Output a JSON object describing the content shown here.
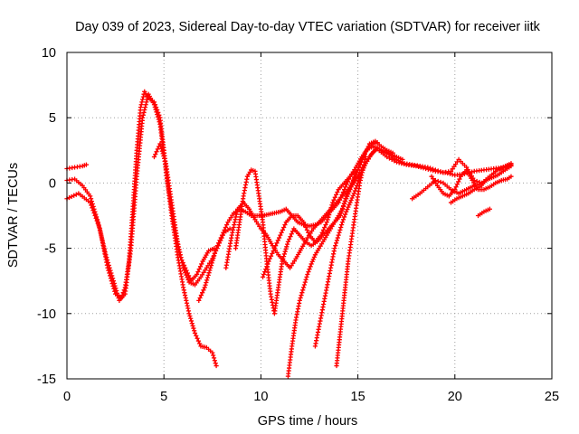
{
  "chart_data": {
    "type": "scatter",
    "title": "Day 039 of 2023, Sidereal Day-to-day VTEC variation (SDTVAR) for receiver iitk",
    "xlabel": "GPS time / hours",
    "ylabel": "SDTVAR / TECUs",
    "xlim": [
      0,
      25
    ],
    "ylim": [
      -15,
      10
    ],
    "xticks": [
      0,
      5,
      10,
      15,
      20,
      25
    ],
    "yticks": [
      -15,
      -10,
      -5,
      0,
      5,
      10
    ],
    "grid": true,
    "marker": "+",
    "color": "#ff0000",
    "series": [
      {
        "name": "trace-1",
        "x": [
          0,
          0.6,
          1.2,
          1.7,
          2.1,
          2.5,
          2.8,
          3.0,
          3.2,
          3.4,
          3.6,
          3.8,
          4.0,
          4.2,
          4.5,
          4.8,
          5.0,
          5.2,
          5.5,
          5.8,
          6.1,
          6.4,
          6.7,
          7.0,
          7.3,
          7.6
        ],
        "y": [
          -1.2,
          -0.8,
          -1.5,
          -3.5,
          -6.5,
          -8.5,
          -8.8,
          -8.0,
          -6.0,
          -2.0,
          2.5,
          5.8,
          7.0,
          6.5,
          6.2,
          5.0,
          2.5,
          0.0,
          -3.0,
          -5.5,
          -6.5,
          -7.5,
          -7.0,
          -6.0,
          -5.2,
          -5.0
        ]
      },
      {
        "name": "trace-2",
        "x": [
          0,
          0.4,
          0.8,
          1.2,
          1.6,
          2.0,
          2.4,
          2.7,
          3.0,
          3.3,
          3.6,
          3.9,
          4.2,
          4.5,
          4.8,
          5.1,
          5.4,
          5.7,
          6.0,
          6.3,
          6.6,
          6.9,
          7.2,
          7.5,
          7.7
        ],
        "y": [
          0.2,
          0.3,
          -0.2,
          -1.0,
          -3.0,
          -5.5,
          -7.5,
          -9.0,
          -8.5,
          -5.0,
          0.5,
          5.0,
          6.8,
          6.0,
          4.5,
          1.0,
          -2.5,
          -5.5,
          -8.0,
          -10.0,
          -11.5,
          -12.5,
          -12.6,
          -13.0,
          -14.0
        ]
      },
      {
        "name": "trace-3",
        "x": [
          0,
          0.4,
          0.8,
          1.0
        ],
        "y": [
          1.1,
          1.2,
          1.3,
          1.4
        ]
      },
      {
        "name": "trace-4",
        "x": [
          4.5,
          4.8,
          5.1,
          5.4,
          5.7,
          6.0,
          6.3,
          6.6,
          6.9,
          7.2,
          7.5,
          7.8,
          8.1,
          8.4
        ],
        "y": [
          2.0,
          3.0,
          1.5,
          -1.5,
          -4.5,
          -6.5,
          -7.6,
          -7.8,
          -7.2,
          -6.5,
          -5.8,
          -4.8,
          -3.8,
          -3.5
        ]
      },
      {
        "name": "trace-5",
        "x": [
          6.8,
          7.1,
          7.4,
          7.7,
          8.0,
          8.3,
          8.6,
          8.9,
          9.2,
          9.5,
          9.8,
          10.1,
          10.4,
          10.7,
          11.0,
          11.3,
          11.6,
          11.9,
          12.2,
          12.5,
          12.8,
          13.1,
          13.4,
          13.7,
          14.0,
          14.3,
          14.6,
          14.9,
          15.2,
          15.5,
          15.8,
          16.1,
          16.4,
          16.7,
          17.0,
          17.3
        ],
        "y": [
          -9.0,
          -8.0,
          -6.5,
          -5.0,
          -4.0,
          -3.0,
          -2.3,
          -2.0,
          -2.2,
          -2.5,
          -2.5,
          -2.5,
          -2.4,
          -2.3,
          -2.2,
          -2.0,
          -2.5,
          -3.0,
          -3.2,
          -3.3,
          -3.2,
          -3.0,
          -2.5,
          -2.0,
          -1.5,
          -0.5,
          0.5,
          1.2,
          2.0,
          2.6,
          2.8,
          2.6,
          2.4,
          2.2,
          2.0,
          1.8
        ]
      },
      {
        "name": "trace-6",
        "x": [
          8.7,
          8.9,
          9.1,
          9.3,
          9.5,
          9.7,
          9.9,
          10.1,
          10.3,
          10.5,
          10.7,
          10.9,
          11.1,
          11.4,
          11.7,
          12.0,
          12.3,
          12.6,
          12.9,
          13.2,
          13.5,
          13.8,
          14.1,
          14.4,
          14.7,
          15.0,
          15.3,
          15.6,
          15.9,
          16.2,
          16.5,
          16.8
        ],
        "y": [
          -5.0,
          -3.0,
          -1.0,
          0.5,
          1.0,
          0.9,
          -1.0,
          -3.0,
          -6.0,
          -8.5,
          -10.0,
          -8.0,
          -6.0,
          -4.5,
          -3.5,
          -4.0,
          -4.5,
          -4.8,
          -4.5,
          -4.0,
          -3.5,
          -3.0,
          -2.5,
          -1.0,
          0.0,
          1.0,
          2.0,
          3.0,
          3.2,
          2.8,
          2.5,
          2.3
        ]
      },
      {
        "name": "trace-7",
        "x": [
          8.2,
          8.5,
          8.8,
          9.1,
          9.4,
          9.7,
          10.0,
          10.3,
          10.6,
          10.9,
          11.2,
          11.5,
          11.8,
          12.1,
          12.4,
          12.7,
          13.0,
          13.3,
          13.6,
          13.9,
          14.2,
          14.5,
          14.8,
          15.1,
          15.4,
          15.7,
          16.0
        ],
        "y": [
          -6.5,
          -4.0,
          -2.0,
          -1.5,
          -2.0,
          -2.8,
          -3.5,
          -4.0,
          -4.8,
          -5.5,
          -6.0,
          -6.5,
          -5.8,
          -5.0,
          -4.2,
          -3.5,
          -3.0,
          -2.5,
          -2.0,
          -1.5,
          -1.0,
          -0.5,
          0.0,
          0.8,
          1.5,
          2.2,
          2.7
        ]
      },
      {
        "name": "trace-8",
        "x": [
          10.1,
          10.4,
          10.7,
          11.0,
          11.3,
          11.6,
          11.9,
          12.2,
          12.5,
          12.8,
          13.1,
          13.4,
          13.7,
          14.0,
          14.3,
          14.6,
          14.9
        ],
        "y": [
          -7.2,
          -6.0,
          -5.0,
          -4.0,
          -3.0,
          -2.5,
          -2.5,
          -3.0,
          -4.0,
          -4.5,
          -4.0,
          -3.0,
          -1.5,
          -0.5,
          0.0,
          0.5,
          1.0
        ]
      },
      {
        "name": "trace-9",
        "x": [
          11.4,
          11.6,
          11.8,
          12.0,
          12.2,
          12.4,
          12.6,
          12.8,
          13.0,
          13.2,
          13.4,
          13.6,
          13.8,
          14.0,
          14.2,
          14.4,
          14.6,
          14.8,
          15.0,
          15.2,
          15.4,
          15.6,
          15.8,
          16.0
        ],
        "y": [
          -14.8,
          -12.5,
          -10.5,
          -9.0,
          -8.0,
          -7.0,
          -6.2,
          -5.5,
          -5.0,
          -4.5,
          -4.0,
          -3.5,
          -3.0,
          -2.5,
          -2.0,
          -1.2,
          -0.5,
          0.3,
          1.0,
          1.8,
          2.4,
          2.8,
          3.0,
          3.1
        ]
      },
      {
        "name": "trace-10",
        "x": [
          12.8,
          13.0,
          13.2,
          13.4,
          13.6,
          13.8,
          14.0,
          14.2,
          14.4,
          14.6,
          14.8,
          15.0,
          15.2,
          15.4,
          15.6,
          15.8,
          16.0,
          16.5,
          17.0,
          17.5,
          18.0,
          18.5,
          19.0,
          19.5,
          20.0,
          20.5,
          21.0,
          21.5,
          22.0,
          22.5,
          22.9
        ],
        "y": [
          -12.5,
          -11.0,
          -9.5,
          -8.0,
          -6.5,
          -5.0,
          -4.0,
          -3.0,
          -2.2,
          -1.5,
          -0.8,
          0.0,
          0.8,
          1.5,
          2.0,
          2.4,
          2.6,
          2.0,
          1.6,
          1.4,
          1.3,
          1.1,
          0.9,
          0.8,
          0.6,
          0.7,
          0.9,
          1.0,
          1.1,
          1.2,
          1.4
        ]
      },
      {
        "name": "trace-11",
        "x": [
          13.9,
          14.05,
          14.2,
          14.35,
          14.5,
          14.65,
          14.8,
          14.95,
          15.1,
          15.25,
          15.4
        ],
        "y": [
          -14.0,
          -12.0,
          -10.0,
          -8.0,
          -6.0,
          -4.5,
          -3.0,
          -1.5,
          0.0,
          1.0,
          2.0
        ]
      },
      {
        "name": "trace-12",
        "x": [
          16.2,
          16.6,
          17.0,
          17.4,
          17.8,
          18.2,
          18.6,
          19.0,
          19.4,
          19.8,
          20.2,
          20.6,
          21.0,
          21.4,
          21.8,
          22.2,
          22.6,
          22.9
        ],
        "y": [
          2.5,
          2.2,
          1.8,
          1.5,
          1.4,
          1.3,
          1.2,
          1.0,
          0.8,
          0.9,
          1.8,
          1.2,
          0.2,
          0.0,
          0.5,
          1.0,
          1.3,
          1.5
        ]
      },
      {
        "name": "trace-13",
        "x": [
          17.8,
          18.2,
          18.6,
          19.0,
          19.4,
          19.8,
          20.2,
          20.6,
          21.0,
          21.4,
          21.8,
          22.2,
          22.6,
          22.9
        ],
        "y": [
          -1.2,
          -0.8,
          -0.3,
          0.2,
          0.0,
          -0.5,
          -0.8,
          -0.5,
          -0.2,
          0.0,
          0.5,
          1.0,
          1.2,
          1.3
        ]
      },
      {
        "name": "trace-14",
        "x": [
          18.8,
          19.1,
          19.4,
          19.7,
          20.0,
          20.3,
          20.6,
          20.9,
          21.2,
          21.5,
          21.8,
          22.1,
          22.4,
          22.7,
          22.9
        ],
        "y": [
          0.5,
          -0.2,
          -0.8,
          -1.0,
          -0.5,
          0.5,
          1.0,
          0.2,
          -0.5,
          -0.5,
          -0.3,
          0.0,
          0.2,
          0.3,
          0.5
        ]
      },
      {
        "name": "trace-15",
        "x": [
          19.8,
          20.1,
          20.4,
          20.7,
          21.0,
          21.3,
          21.6,
          21.9,
          22.2,
          22.5,
          22.8
        ],
        "y": [
          -1.5,
          -1.2,
          -1.0,
          -0.8,
          -0.5,
          -0.3,
          0.2,
          0.4,
          0.6,
          0.9,
          1.2
        ]
      },
      {
        "name": "trace-16",
        "x": [
          21.2,
          21.5,
          21.8
        ],
        "y": [
          -2.5,
          -2.2,
          -2.0
        ]
      }
    ]
  }
}
